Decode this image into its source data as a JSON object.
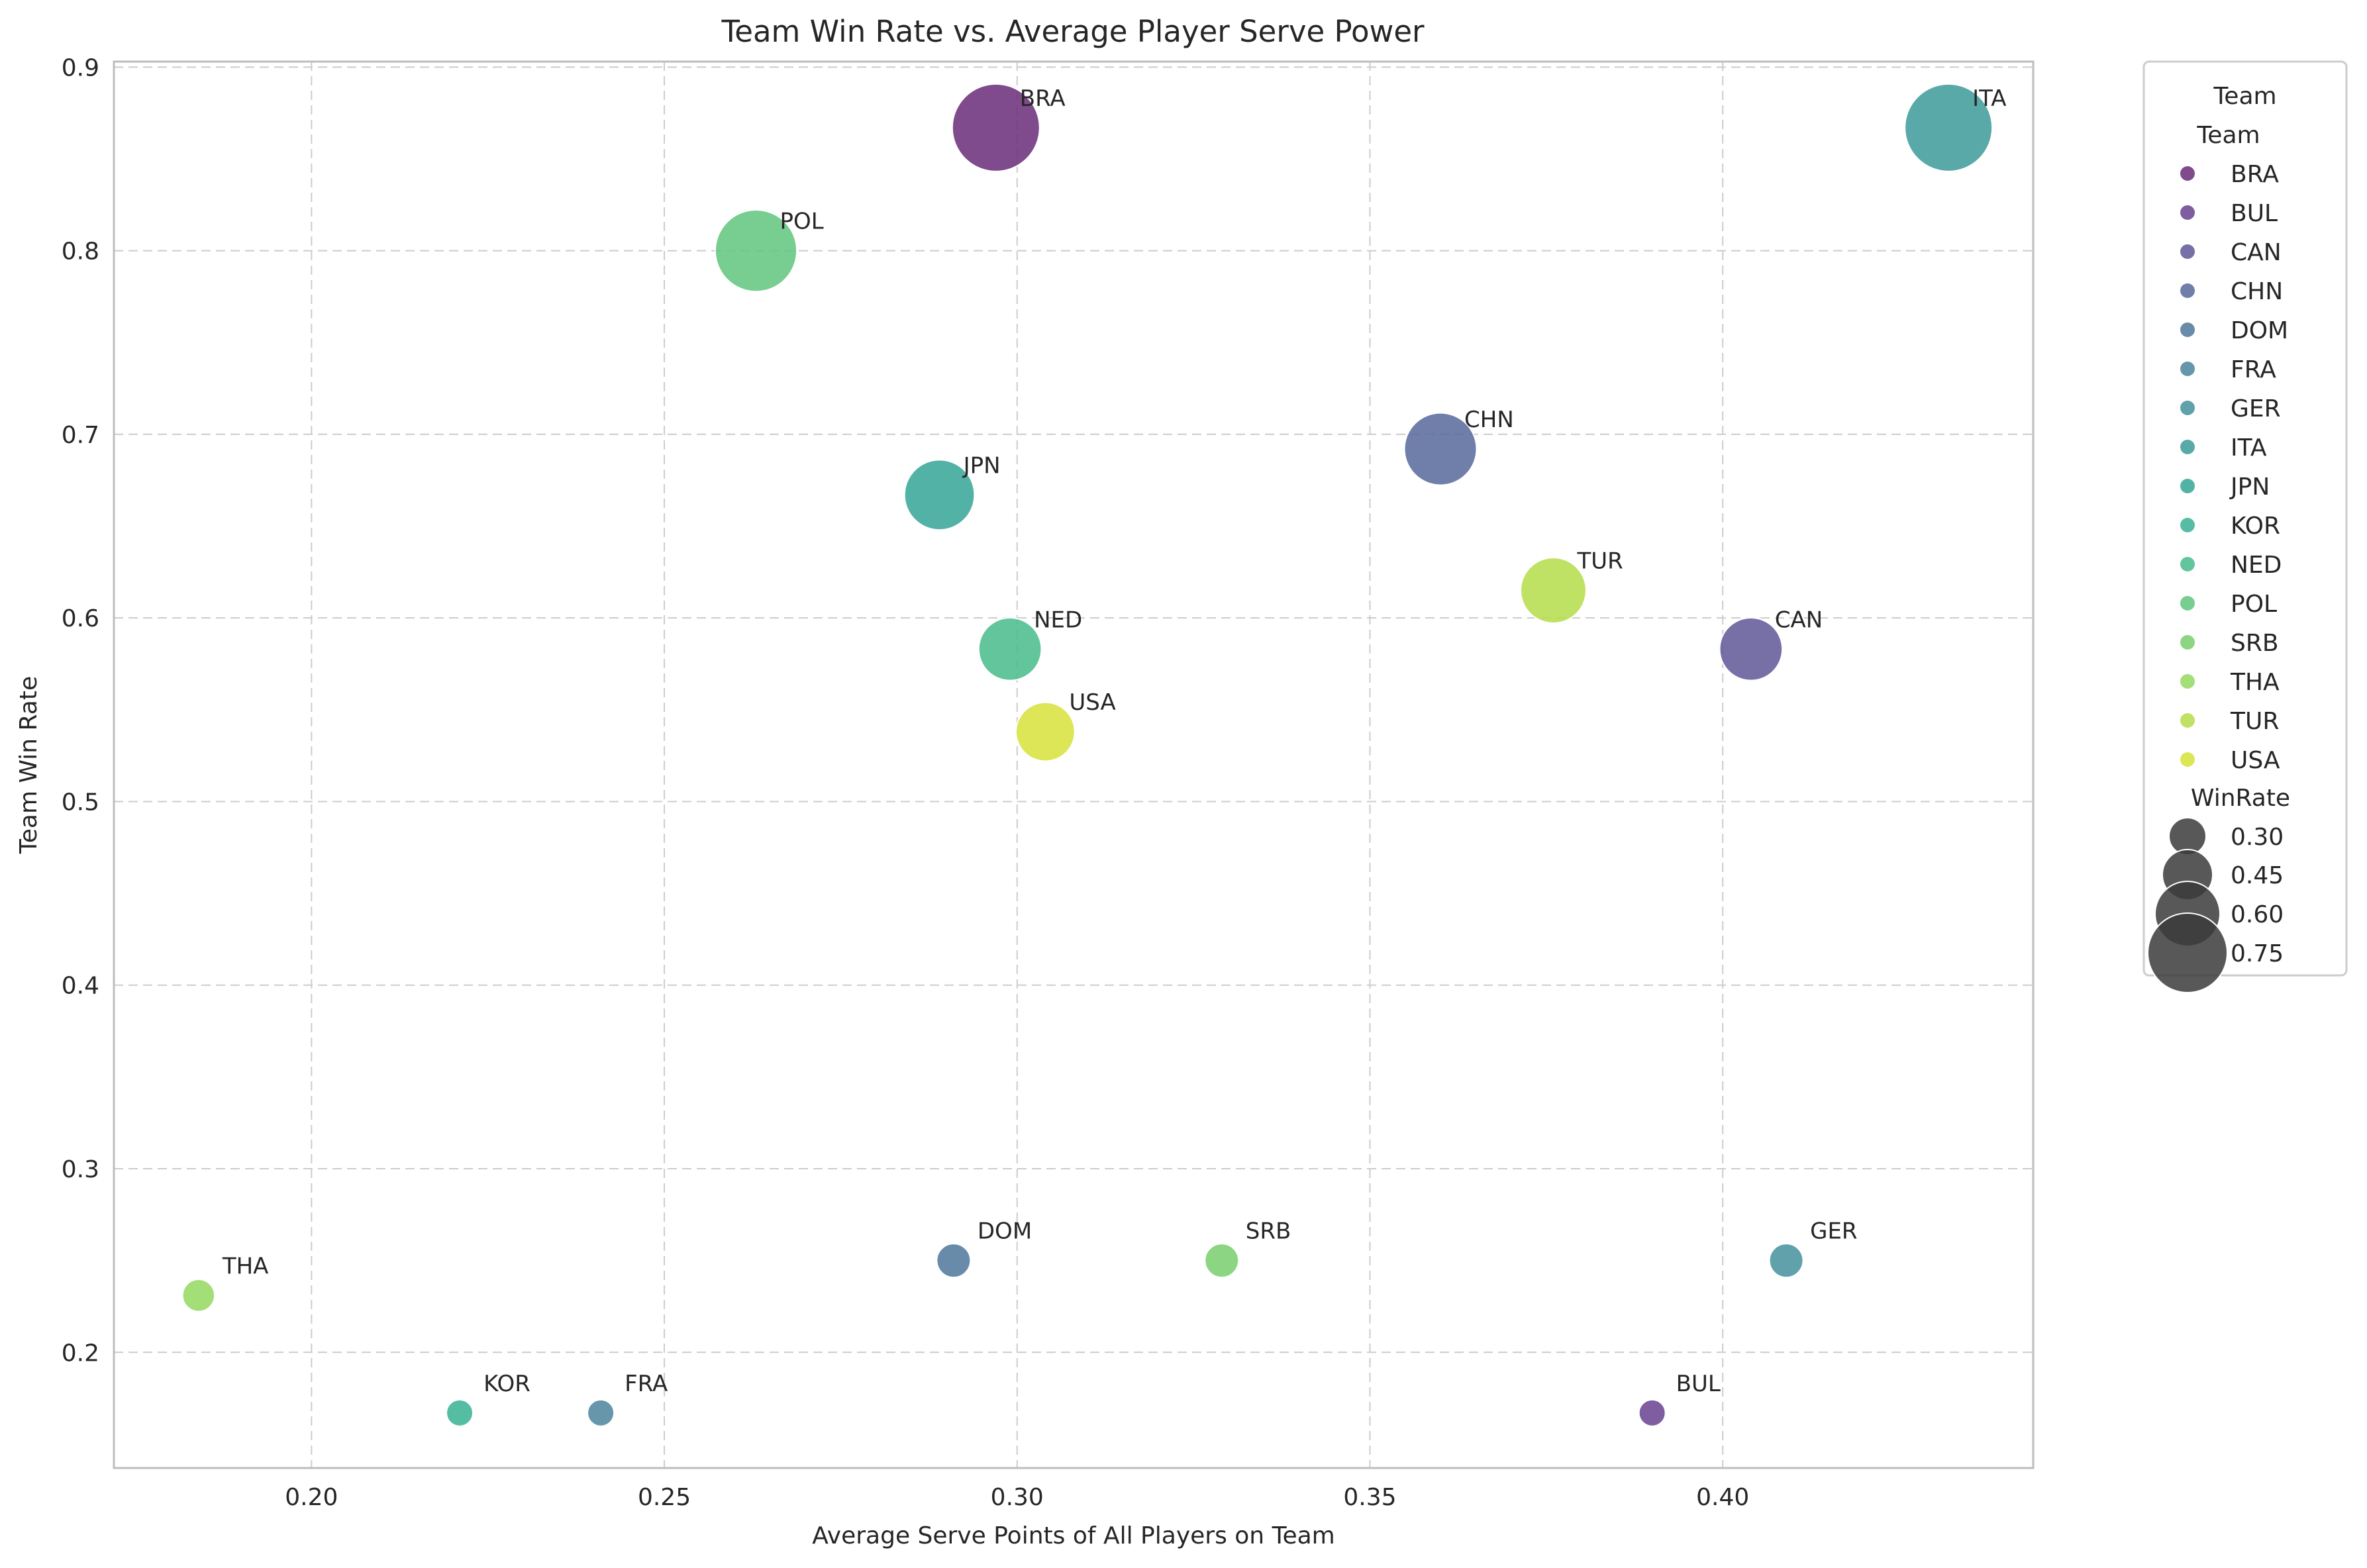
{
  "chart_data": {
    "type": "scatter",
    "title": "Team Win Rate vs. Average Player Serve Power",
    "xlabel": "Average Serve Points of All Players on Team",
    "ylabel": "Team Win Rate",
    "xlim": [
      0.172,
      0.444
    ],
    "ylim": [
      0.137,
      0.903
    ],
    "xticks": [
      0.2,
      0.25,
      0.3,
      0.35,
      0.4
    ],
    "xtick_labels": [
      "0.20",
      "0.25",
      "0.30",
      "0.35",
      "0.40"
    ],
    "yticks": [
      0.2,
      0.3,
      0.4,
      0.5,
      0.6,
      0.7,
      0.8,
      0.9
    ],
    "ytick_labels": [
      "0.2",
      "0.3",
      "0.4",
      "0.5",
      "0.6",
      "0.7",
      "0.8",
      "0.9"
    ],
    "grid": true,
    "legend_placement": "outside right",
    "points": [
      {
        "team": "BRA",
        "x": 0.297,
        "y": 0.867,
        "win_rate": 0.867,
        "color": "#6a2c78"
      },
      {
        "team": "BUL",
        "x": 0.39,
        "y": 0.167,
        "win_rate": 0.167,
        "color": "#67418f"
      },
      {
        "team": "CAN",
        "x": 0.404,
        "y": 0.583,
        "win_rate": 0.583,
        "color": "#5e5797"
      },
      {
        "team": "CHN",
        "x": 0.36,
        "y": 0.692,
        "win_rate": 0.692,
        "color": "#56699a"
      },
      {
        "team": "DOM",
        "x": 0.291,
        "y": 0.25,
        "win_rate": 0.25,
        "color": "#4f779b"
      },
      {
        "team": "FRA",
        "x": 0.241,
        "y": 0.167,
        "win_rate": 0.167,
        "color": "#4b849c"
      },
      {
        "team": "GER",
        "x": 0.409,
        "y": 0.25,
        "win_rate": 0.25,
        "color": "#44909c"
      },
      {
        "team": "ITA",
        "x": 0.432,
        "y": 0.867,
        "win_rate": 0.867,
        "color": "#3d9a9a"
      },
      {
        "team": "JPN",
        "x": 0.289,
        "y": 0.667,
        "win_rate": 0.667,
        "color": "#35a597"
      },
      {
        "team": "KOR",
        "x": 0.221,
        "y": 0.167,
        "win_rate": 0.167,
        "color": "#38b195"
      },
      {
        "team": "NED",
        "x": 0.299,
        "y": 0.583,
        "win_rate": 0.583,
        "color": "#47bb89"
      },
      {
        "team": "POL",
        "x": 0.263,
        "y": 0.8,
        "win_rate": 0.8,
        "color": "#5fc57c"
      },
      {
        "team": "SRB",
        "x": 0.329,
        "y": 0.25,
        "win_rate": 0.25,
        "color": "#78cf6d"
      },
      {
        "team": "THA",
        "x": 0.184,
        "y": 0.231,
        "win_rate": 0.231,
        "color": "#93d85e"
      },
      {
        "team": "TUR",
        "x": 0.376,
        "y": 0.615,
        "win_rate": 0.615,
        "color": "#b4dd4a"
      },
      {
        "team": "USA",
        "x": 0.304,
        "y": 0.538,
        "win_rate": 0.538,
        "color": "#d6e23a"
      }
    ],
    "legend": {
      "title": "Team",
      "hue_title": "Team",
      "hue_entries": [
        "BRA",
        "BUL",
        "CAN",
        "CHN",
        "DOM",
        "FRA",
        "GER",
        "ITA",
        "JPN",
        "KOR",
        "NED",
        "POL",
        "SRB",
        "THA",
        "TUR",
        "USA"
      ],
      "size_title": "WinRate",
      "size_entries": [
        {
          "label": "0.30",
          "value": 0.3
        },
        {
          "label": "0.45",
          "value": 0.45
        },
        {
          "label": "0.60",
          "value": 0.6
        },
        {
          "label": "0.75",
          "value": 0.75
        }
      ],
      "size_marker_color": "#3b3b3b"
    }
  }
}
